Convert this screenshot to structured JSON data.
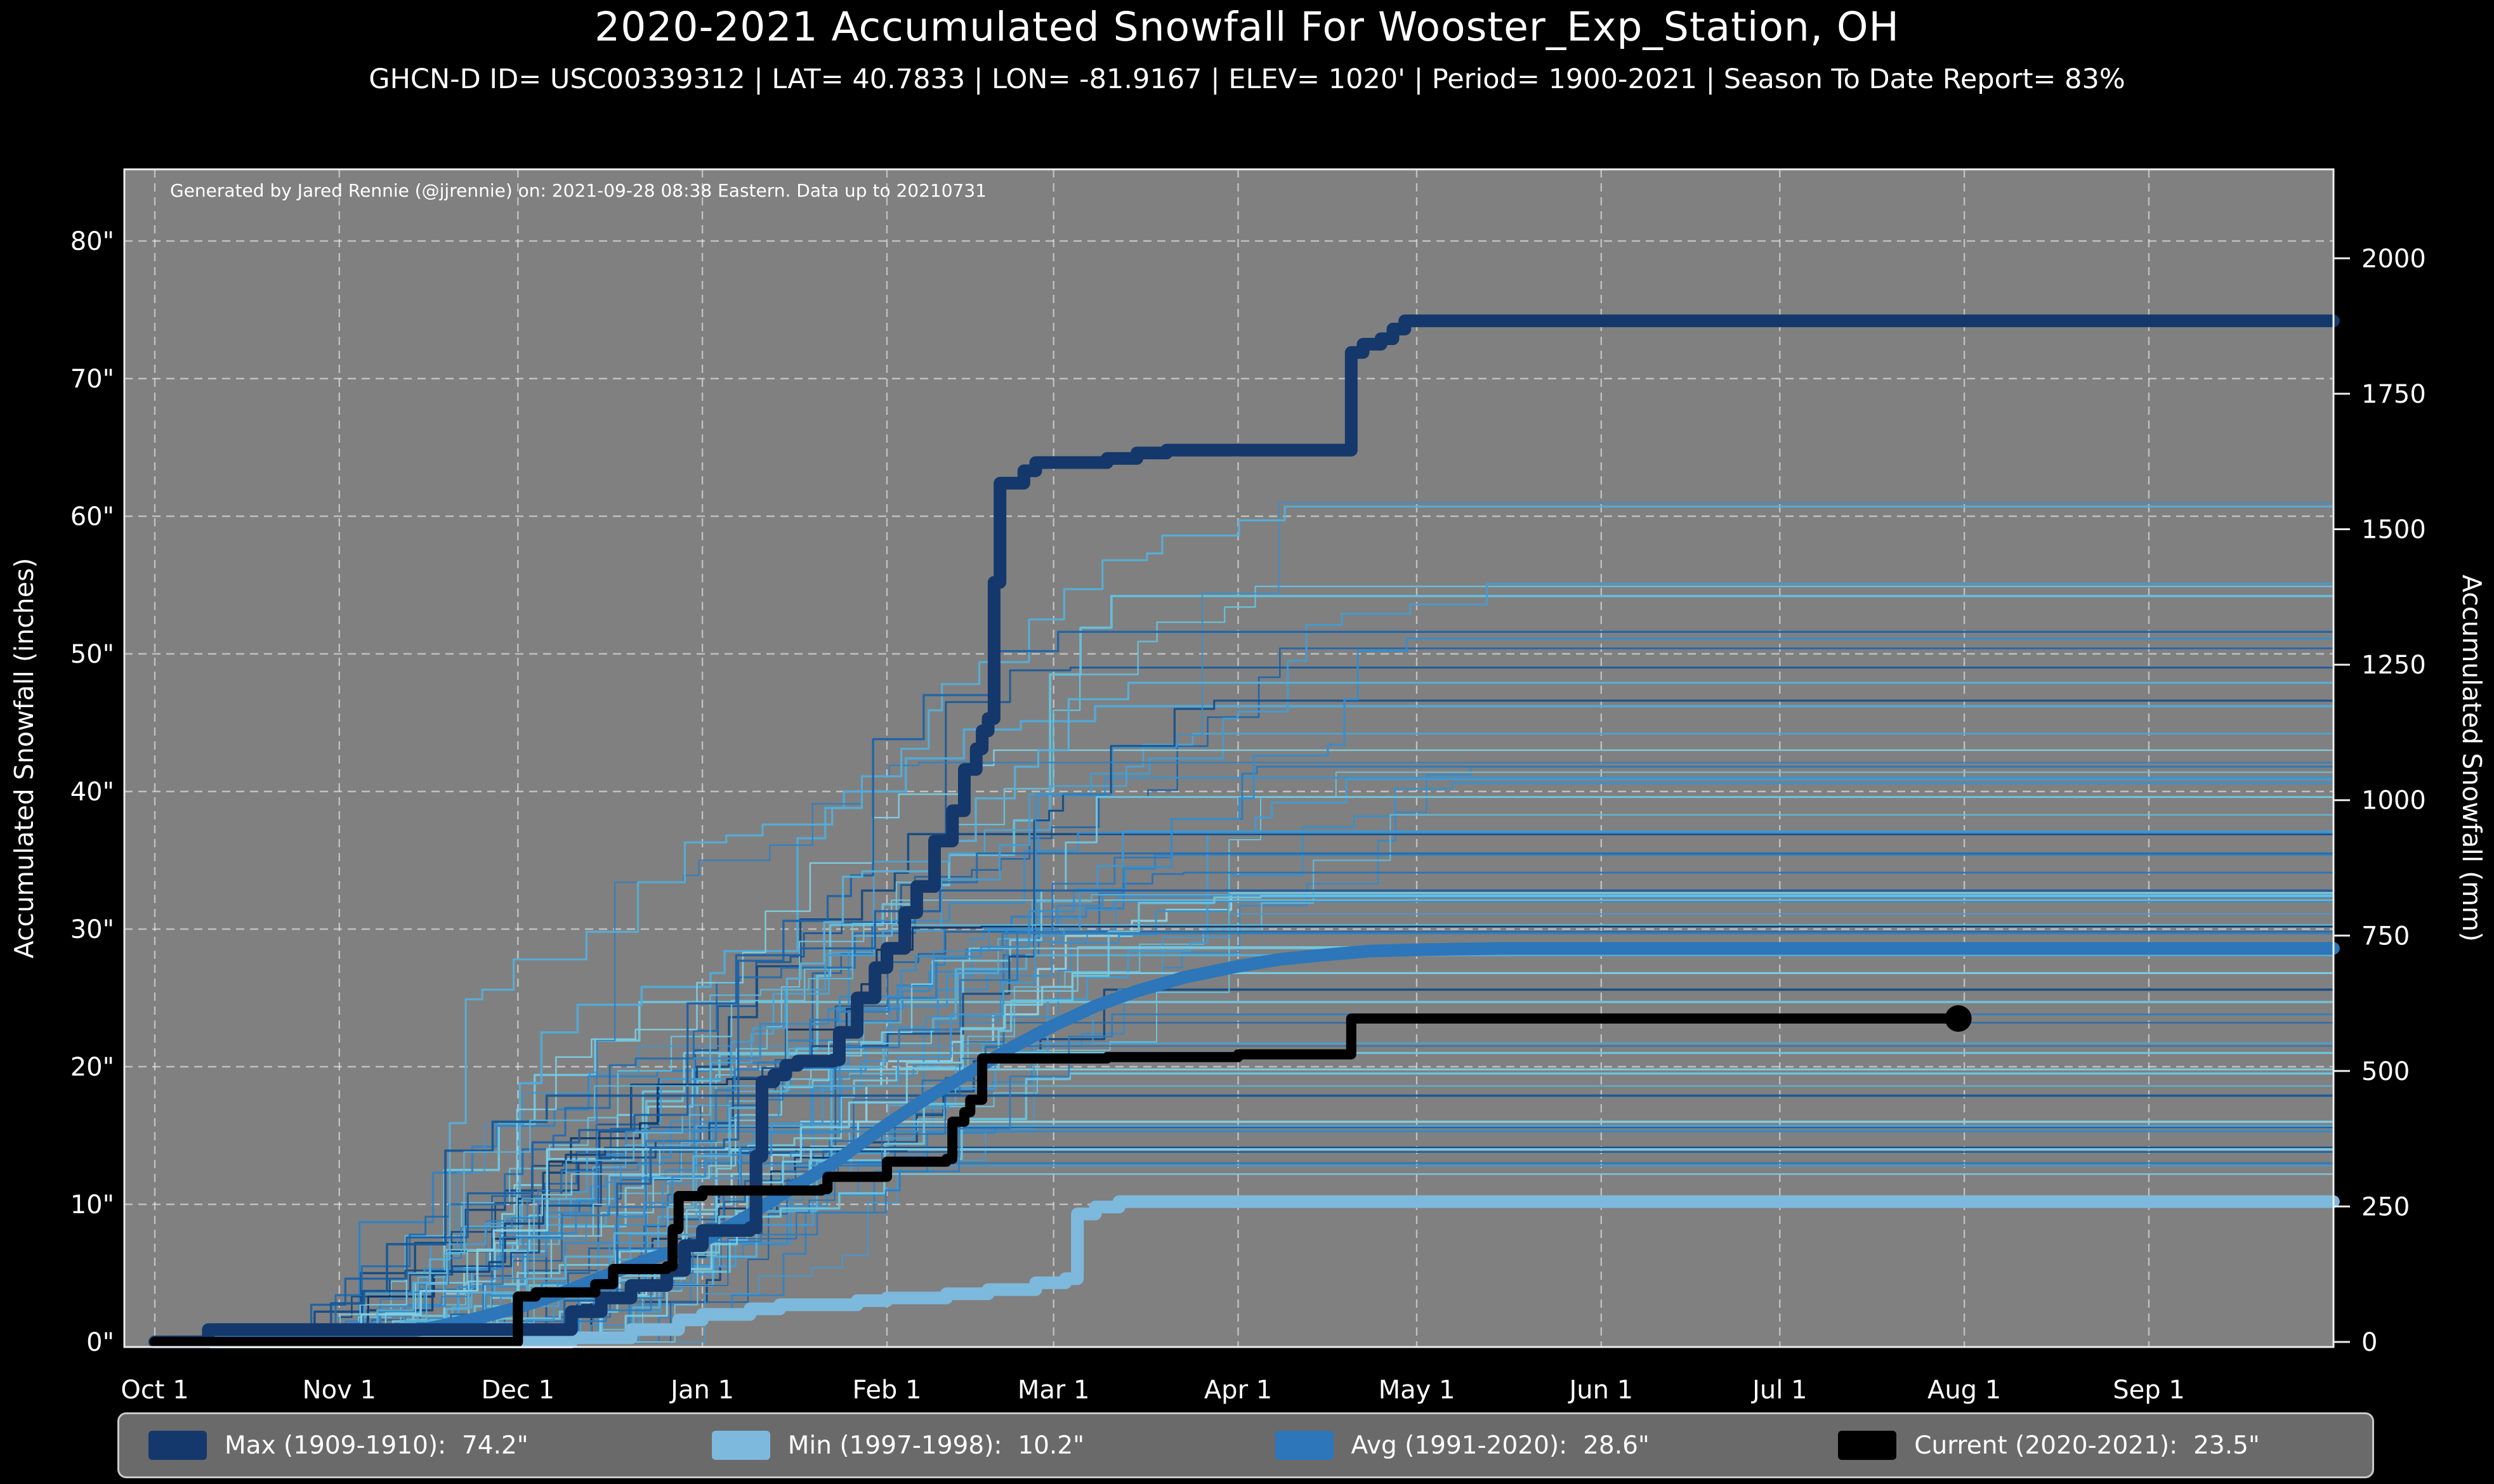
{
  "title": "2020-2021 Accumulated Snowfall For Wooster_Exp_Station, OH",
  "subtitle": "GHCN-D ID= USC00339312 | LAT= 40.7833 | LON= -81.9167 | ELEV= 1020' | Period= 1900-2021 | Season To Date Report= 83%",
  "annotation": "Generated by Jared Rennie (@jjrennie) on: 2021-09-28 08:38 Eastern. Data up to 20210731",
  "colors": {
    "figure_background": "#000000",
    "plot_background": "#808080",
    "grid": "#ffffff",
    "spine": "#ededed",
    "text": "#ffffff",
    "max_line": "#14386b",
    "min_line": "#7db9dc",
    "avg_line": "#2c76b9",
    "current_line": "#000000",
    "legend_background": "#6a6a6a",
    "legend_border": "#c9c9c9"
  },
  "axes": {
    "x": {
      "ticks": [
        {
          "label": "Oct 1",
          "day": 0
        },
        {
          "label": "Nov 1",
          "day": 31
        },
        {
          "label": "Dec 1",
          "day": 61
        },
        {
          "label": "Jan 1",
          "day": 92
        },
        {
          "label": "Feb 1",
          "day": 123
        },
        {
          "label": "Mar 1",
          "day": 151
        },
        {
          "label": "Apr 1",
          "day": 182
        },
        {
          "label": "May 1",
          "day": 212
        },
        {
          "label": "Jun 1",
          "day": 243
        },
        {
          "label": "Jul 1",
          "day": 273
        },
        {
          "label": "Aug 1",
          "day": 304
        },
        {
          "label": "Sep 1",
          "day": 335
        }
      ]
    },
    "y_inches": {
      "label": "Accumulated Snowfall (inches)",
      "ticks": [
        {
          "value": 0,
          "label": "0\""
        },
        {
          "value": 10,
          "label": "10\""
        },
        {
          "value": 20,
          "label": "20\""
        },
        {
          "value": 30,
          "label": "30\""
        },
        {
          "value": 40,
          "label": "40\""
        },
        {
          "value": 50,
          "label": "50\""
        },
        {
          "value": 60,
          "label": "60\""
        },
        {
          "value": 70,
          "label": "70\""
        },
        {
          "value": 80,
          "label": "80\""
        }
      ]
    },
    "y_mm": {
      "label": "Accumulated Snowfall (mm)",
      "ticks": [
        {
          "value": 0,
          "label": "0"
        },
        {
          "value": 250,
          "label": "250"
        },
        {
          "value": 500,
          "label": "500"
        },
        {
          "value": 750,
          "label": "750"
        },
        {
          "value": 1000,
          "label": "1000"
        },
        {
          "value": 1250,
          "label": "1250"
        },
        {
          "value": 1500,
          "label": "1500"
        },
        {
          "value": 1750,
          "label": "1750"
        },
        {
          "value": 2000,
          "label": "2000"
        }
      ]
    }
  },
  "legend": [
    {
      "name": "max",
      "label": "Max (1909-1910):  74.2\"",
      "color": "#14386b"
    },
    {
      "name": "min",
      "label": "Min (1997-1998):  10.2\"",
      "color": "#7db9dc"
    },
    {
      "name": "avg",
      "label": "Avg (1991-2020):  28.6\"",
      "color": "#2c76b9"
    },
    {
      "name": "current",
      "label": "Current (2020-2021):  23.5\"",
      "color": "#000000"
    }
  ],
  "chart_data": {
    "type": "line",
    "x_unit": "days since Oct 1",
    "xlabel": "",
    "ylabel_left": "Accumulated Snowfall (inches)",
    "ylabel_right": "Accumulated Snowfall (mm)",
    "xlim_days": [
      0,
      366
    ],
    "ylim_inches": [
      0,
      85
    ],
    "ylim_mm": [
      0,
      2159
    ],
    "grid": "white dashed, both axes",
    "legend_position": "bottom, horizontal, 4 entries",
    "series": [
      {
        "name": "Max (1909-1910)",
        "season_total_inches": 74.2,
        "color": "#14386b",
        "width": 20,
        "interp": "step",
        "points": [
          [
            0,
            0
          ],
          [
            9,
            0.9
          ],
          [
            66,
            0.9
          ],
          [
            70,
            2.2
          ],
          [
            75,
            3.2
          ],
          [
            80,
            4.1
          ],
          [
            86,
            5.2
          ],
          [
            89,
            7.0
          ],
          [
            92,
            8.1
          ],
          [
            100,
            8.3
          ],
          [
            101,
            13.5
          ],
          [
            102,
            18.9
          ],
          [
            104,
            19.4
          ],
          [
            106,
            20.1
          ],
          [
            108,
            20.4
          ],
          [
            114,
            20.5
          ],
          [
            115,
            22.5
          ],
          [
            118,
            25.0
          ],
          [
            121,
            27.2
          ],
          [
            123,
            28.6
          ],
          [
            126,
            31.2
          ],
          [
            128,
            33.1
          ],
          [
            131,
            36.4
          ],
          [
            134,
            38.6
          ],
          [
            136,
            41.6
          ],
          [
            138,
            43.1
          ],
          [
            139,
            44.4
          ],
          [
            140,
            45.3
          ],
          [
            141,
            55.2
          ],
          [
            142,
            62.4
          ],
          [
            146,
            63.3
          ],
          [
            148,
            63.9
          ],
          [
            160,
            64.2
          ],
          [
            165,
            64.6
          ],
          [
            170,
            64.8
          ],
          [
            200,
            64.8
          ],
          [
            201,
            71.9
          ],
          [
            203,
            72.5
          ],
          [
            206,
            72.9
          ],
          [
            208,
            73.6
          ],
          [
            210,
            74.2
          ],
          [
            366,
            74.2
          ]
        ]
      },
      {
        "name": "Min (1997-1998)",
        "season_total_inches": 10.2,
        "color": "#7db9dc",
        "width": 20,
        "interp": "step",
        "points": [
          [
            0,
            0
          ],
          [
            70,
            0.3
          ],
          [
            80,
            0.9
          ],
          [
            88,
            1.6
          ],
          [
            92,
            2.0
          ],
          [
            100,
            2.4
          ],
          [
            105,
            2.7
          ],
          [
            118,
            3.0
          ],
          [
            123,
            3.2
          ],
          [
            133,
            3.5
          ],
          [
            140,
            3.8
          ],
          [
            148,
            4.3
          ],
          [
            153,
            4.6
          ],
          [
            155,
            9.3
          ],
          [
            158,
            9.8
          ],
          [
            162,
            10.2
          ],
          [
            366,
            10.2
          ]
        ]
      },
      {
        "name": "Avg (1991-2020)",
        "season_total_inches": 28.6,
        "color": "#2c76b9",
        "width": 20,
        "interp": "linear",
        "points": [
          [
            0,
            0
          ],
          [
            20,
            0.05
          ],
          [
            31,
            0.2
          ],
          [
            38,
            0.5
          ],
          [
            45,
            0.9
          ],
          [
            53,
            1.6
          ],
          [
            61,
            2.5
          ],
          [
            68,
            3.5
          ],
          [
            75,
            4.7
          ],
          [
            83,
            6.0
          ],
          [
            92,
            7.3
          ],
          [
            99,
            9.0
          ],
          [
            106,
            10.9
          ],
          [
            114,
            13.0
          ],
          [
            123,
            15.8
          ],
          [
            130,
            17.8
          ],
          [
            137,
            19.6
          ],
          [
            144,
            21.4
          ],
          [
            151,
            23.0
          ],
          [
            158,
            24.4
          ],
          [
            165,
            25.5
          ],
          [
            173,
            26.5
          ],
          [
            182,
            27.3
          ],
          [
            189,
            27.8
          ],
          [
            196,
            28.1
          ],
          [
            204,
            28.4
          ],
          [
            212,
            28.5
          ],
          [
            227,
            28.6
          ],
          [
            243,
            28.6
          ],
          [
            366,
            28.6
          ]
        ]
      },
      {
        "name": "Current (2020-2021)",
        "season_total_inches": 23.5,
        "color": "#000000",
        "width": 16,
        "interp": "step",
        "end_marker": {
          "day": 303,
          "value": 23.5,
          "radius": 21
        },
        "points": [
          [
            0,
            0
          ],
          [
            60,
            0
          ],
          [
            61,
            3.3
          ],
          [
            64,
            3.6
          ],
          [
            74,
            4.2
          ],
          [
            77,
            5.3
          ],
          [
            86,
            5.5
          ],
          [
            87,
            8.2
          ],
          [
            88,
            10.6
          ],
          [
            92,
            11.0
          ],
          [
            112,
            11.1
          ],
          [
            113,
            12.0
          ],
          [
            123,
            13.1
          ],
          [
            133,
            13.3
          ],
          [
            134,
            16.0
          ],
          [
            136,
            16.7
          ],
          [
            137,
            17.6
          ],
          [
            139,
            20.6
          ],
          [
            160,
            20.7
          ],
          [
            182,
            20.9
          ],
          [
            200,
            20.9
          ],
          [
            201,
            23.5
          ],
          [
            303,
            23.5
          ]
        ]
      }
    ],
    "background_ensemble": {
      "description": "Thin step lines, one per season 1900-2021, colored dark navy to light cyan",
      "count": 72,
      "seed": 1337,
      "palette": [
        "#0c3566",
        "#1b5fa2",
        "#2f7fc0",
        "#4ba3d4",
        "#66c2dc",
        "#8fd4e6"
      ],
      "opacity": 0.95,
      "width_range": [
        2.0,
        3.8
      ],
      "final_total_range_inches": [
        12,
        62
      ],
      "accumulation_window_days": [
        18,
        218
      ]
    }
  }
}
